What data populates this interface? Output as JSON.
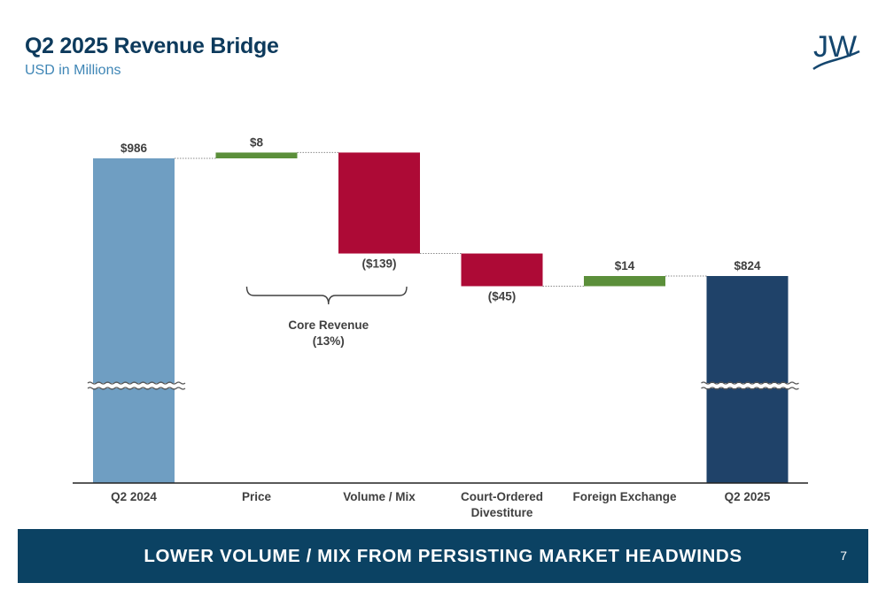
{
  "header": {
    "title": "Q2 2025 Revenue Bridge",
    "subtitle": "USD in Millions",
    "logo_text": "JW"
  },
  "chart_data": {
    "type": "bar",
    "subtype": "waterfall",
    "title": "Q2 2025 Revenue Bridge",
    "subtitle": "USD in Millions",
    "unit": "USD in Millions",
    "categories": [
      [
        "Q2 2024"
      ],
      [
        "Price"
      ],
      [
        "Volume / Mix"
      ],
      [
        "Court-Ordered",
        "Divestiture"
      ],
      [
        "Foreign Exchange"
      ],
      [
        "Q2 2025"
      ]
    ],
    "bars": [
      {
        "category": "Q2 2024",
        "kind": "total",
        "value": 986,
        "label": "$986",
        "color": "#6f9ec2"
      },
      {
        "category": "Price",
        "kind": "increase",
        "value": 8,
        "label": "$8",
        "color": "#5b8f3a"
      },
      {
        "category": "Volume / Mix",
        "kind": "decrease",
        "value": -139,
        "label": "($139)",
        "color": "#ad0a36"
      },
      {
        "category": "Court-Ordered Divestiture",
        "kind": "decrease",
        "value": -45,
        "label": "($45)",
        "color": "#ad0a36"
      },
      {
        "category": "Foreign Exchange",
        "kind": "increase",
        "value": 14,
        "label": "$14",
        "color": "#5b8f3a"
      },
      {
        "category": "Q2 2025",
        "kind": "total",
        "value": 824,
        "label": "$824",
        "color": "#1f4269"
      }
    ],
    "axis_break": true,
    "grid": false,
    "annotation": {
      "lines": [
        "Core Revenue",
        "(13%)"
      ],
      "spans": [
        "Price",
        "Volume / Mix"
      ]
    }
  },
  "banner": {
    "text": "LOWER VOLUME / MIX FROM PERSISTING MARKET HEADWINDS",
    "page_number": "7"
  }
}
